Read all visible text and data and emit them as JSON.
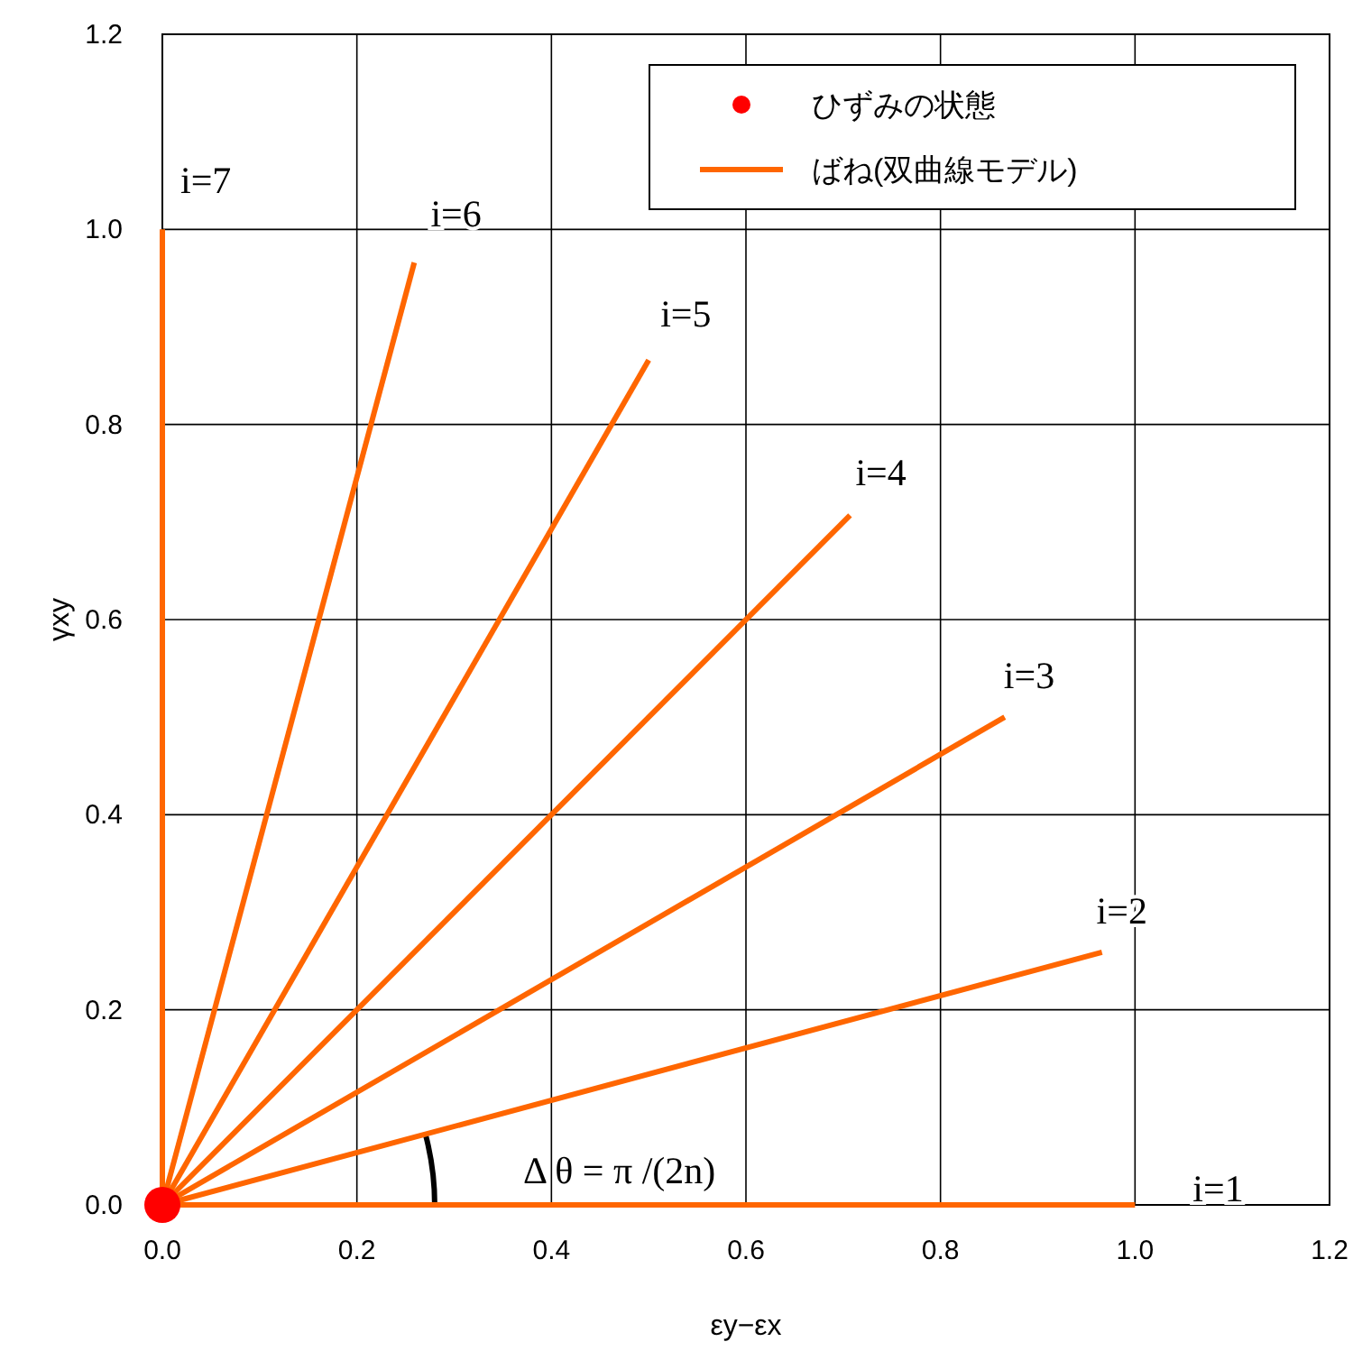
{
  "chart_data": {
    "type": "line",
    "xlabel": "εy−εx",
    "ylabel": "γxy",
    "xlim": [
      0,
      1.2
    ],
    "ylim": [
      0,
      1.2
    ],
    "xticks": [
      {
        "value": 0,
        "label": "0.0"
      },
      0.2,
      0.4,
      0.6,
      0.8,
      {
        "value": 1,
        "label": "1.0"
      },
      1.2
    ],
    "yticks": [
      {
        "value": 0,
        "label": "0.0"
      },
      0.2,
      0.4,
      0.6,
      0.8,
      {
        "value": 1,
        "label": "1.0"
      },
      1.2
    ],
    "grid": true,
    "legend": "top right",
    "series": [
      {
        "type": "scatter",
        "name": "ひずみの状態",
        "color": "#ff0000",
        "x": [
          0
        ],
        "values": [
          0
        ],
        "marker": "circle"
      },
      {
        "name": "ばね(双曲線モデル)",
        "color": "#ff6600",
        "x": [
          0,
          1
        ],
        "values": [
          0,
          0
        ]
      },
      {
        "color": "#ff6600",
        "x": [
          0,
          0.966
        ],
        "values": [
          0,
          0.259
        ]
      },
      {
        "color": "#ff6600",
        "x": [
          0,
          0.866
        ],
        "values": [
          0,
          0.5
        ]
      },
      {
        "color": "#ff6600",
        "x": [
          0,
          0.707
        ],
        "values": [
          0,
          0.707
        ]
      },
      {
        "color": "#ff6600",
        "x": [
          0,
          0.5
        ],
        "values": [
          0,
          0.866
        ]
      },
      {
        "color": "#ff6600",
        "x": [
          0,
          0.259
        ],
        "values": [
          0,
          0.966
        ]
      },
      {
        "color": "#ff6600",
        "x": [
          0,
          0
        ],
        "values": [
          0,
          1
        ]
      }
    ],
    "annotations": [
      {
        "text": "i=1",
        "x": 1,
        "y": 0
      },
      {
        "text": "i=2",
        "x": 0.966,
        "y": 0.259
      },
      {
        "text": "i=3",
        "x": 0.866,
        "y": 0.5
      },
      {
        "text": "i=4",
        "x": 0.707,
        "y": 0.707
      },
      {
        "text": "i=5",
        "x": 0.5,
        "y": 0.866
      },
      {
        "text": "i=6",
        "x": 0.259,
        "y": 0.966
      },
      {
        "text": "i=7",
        "x": 0,
        "y": 1
      },
      "Δ θ = π /(2n)"
    ]
  }
}
